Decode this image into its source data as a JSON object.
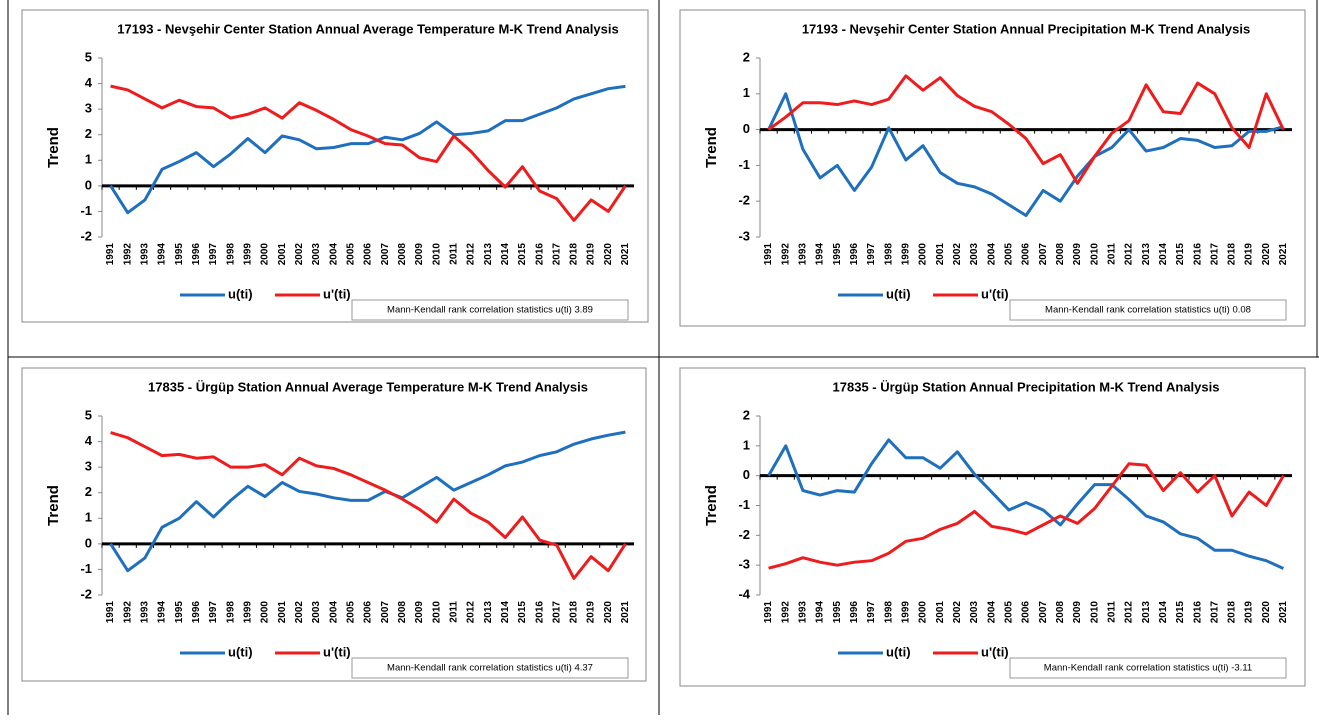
{
  "chart_data": [
    {
      "type": "line",
      "title": "17193 - Nevşehir Center Station  Annual  Average Temperature  M-K Trend Analysis",
      "y_label": "Trend",
      "categories": [
        "1991",
        "1992",
        "1993",
        "1994",
        "1995",
        "1996",
        "1997",
        "1998",
        "1999",
        "2000",
        "2001",
        "2002",
        "2003",
        "2004",
        "2005",
        "2006",
        "2007",
        "2008",
        "2009",
        "2010",
        "2011",
        "2012",
        "2013",
        "2014",
        "2015",
        "2016",
        "2017",
        "2018",
        "2019",
        "2020",
        "2021"
      ],
      "series": [
        {
          "name": "u(ti)",
          "color": "#1f6fbf",
          "values": [
            0,
            -1.05,
            -0.55,
            0.65,
            0.95,
            1.3,
            0.75,
            1.25,
            1.85,
            1.3,
            1.95,
            1.8,
            1.45,
            1.5,
            1.65,
            1.65,
            1.9,
            1.8,
            2.05,
            2.5,
            2.0,
            2.05,
            2.15,
            2.55,
            2.55,
            2.8,
            3.05,
            3.4,
            3.6,
            3.8,
            3.89
          ]
        },
        {
          "name": "u'(ti)",
          "color": "#ee1c1c",
          "values": [
            3.9,
            3.75,
            3.4,
            3.05,
            3.35,
            3.1,
            3.05,
            2.65,
            2.8,
            3.05,
            2.65,
            3.25,
            2.95,
            2.6,
            2.2,
            1.95,
            1.65,
            1.6,
            1.1,
            0.95,
            1.95,
            1.35,
            0.6,
            -0.05,
            0.75,
            -0.2,
            -0.5,
            -1.35,
            -0.55,
            -1.0,
            0
          ]
        }
      ],
      "ylim": [
        -2,
        5
      ],
      "yticks": [
        -2,
        -1,
        0,
        1,
        2,
        3,
        4,
        5
      ],
      "legend": "bottom",
      "annotation": "Mann-Kendall rank correlation statistics    u(ti)    3.89"
    },
    {
      "type": "line",
      "title": "17193 - Nevşehir Center Station  Annual  Precipitation  M-K Trend Analysis",
      "y_label": "Trend",
      "categories": [
        "1991",
        "1992",
        "1993",
        "1994",
        "1995",
        "1996",
        "1997",
        "1998",
        "1999",
        "2000",
        "2001",
        "2002",
        "2003",
        "2004",
        "2005",
        "2006",
        "2007",
        "2008",
        "2009",
        "2010",
        "2011",
        "2012",
        "2013",
        "2014",
        "2015",
        "2016",
        "2017",
        "2018",
        "2019",
        "2020",
        "2021"
      ],
      "series": [
        {
          "name": "u(ti)",
          "color": "#1f6fbf",
          "values": [
            0,
            1.0,
            -0.55,
            -1.35,
            -1.0,
            -1.7,
            -1.05,
            0.05,
            -0.85,
            -0.45,
            -1.2,
            -1.5,
            -1.6,
            -1.8,
            -2.1,
            -2.4,
            -1.7,
            -2.0,
            -1.3,
            -0.75,
            -0.5,
            0.0,
            -0.6,
            -0.5,
            -0.25,
            -0.3,
            -0.5,
            -0.45,
            -0.05,
            -0.05,
            0.08
          ]
        },
        {
          "name": "u'(ti)",
          "color": "#ee1c1c",
          "values": [
            0,
            0.35,
            0.75,
            0.75,
            0.7,
            0.8,
            0.7,
            0.85,
            1.5,
            1.1,
            1.45,
            0.95,
            0.65,
            0.5,
            0.15,
            -0.25,
            -0.95,
            -0.7,
            -1.5,
            -0.75,
            -0.1,
            0.25,
            1.25,
            0.5,
            0.45,
            1.3,
            1.0,
            0.05,
            -0.5,
            1.0,
            0
          ]
        }
      ],
      "ylim": [
        -3,
        2
      ],
      "yticks": [
        -3,
        -2,
        -1,
        0,
        1,
        2
      ],
      "legend": "bottom",
      "annotation": "Mann-Kendall rank correlation statistics    u(ti)    0.08"
    },
    {
      "type": "line",
      "title": "17835 - Ürgüp Station  Annual  Average Temperature  M-K Trend Analysis",
      "y_label": "Trend",
      "categories": [
        "1991",
        "1992",
        "1993",
        "1994",
        "1995",
        "1996",
        "1997",
        "1998",
        "1999",
        "2000",
        "2001",
        "2002",
        "2003",
        "2004",
        "2005",
        "2006",
        "2007",
        "2008",
        "2009",
        "2010",
        "2011",
        "2012",
        "2013",
        "2014",
        "2015",
        "2016",
        "2017",
        "2018",
        "2019",
        "2020",
        "2021"
      ],
      "series": [
        {
          "name": "u(ti)",
          "color": "#1f6fbf",
          "values": [
            0,
            -1.05,
            -0.55,
            0.65,
            1.0,
            1.65,
            1.05,
            1.7,
            2.25,
            1.85,
            2.4,
            2.05,
            1.95,
            1.8,
            1.7,
            1.7,
            2.05,
            1.8,
            2.2,
            2.6,
            2.1,
            2.4,
            2.7,
            3.05,
            3.2,
            3.45,
            3.6,
            3.9,
            4.1,
            4.25,
            4.37
          ]
        },
        {
          "name": "u'(ti)",
          "color": "#ee1c1c",
          "values": [
            4.35,
            4.15,
            3.8,
            3.45,
            3.5,
            3.35,
            3.4,
            3.0,
            3.0,
            3.1,
            2.7,
            3.35,
            3.05,
            2.95,
            2.7,
            2.4,
            2.1,
            1.75,
            1.35,
            0.85,
            1.75,
            1.2,
            0.85,
            0.25,
            1.05,
            0.15,
            -0.05,
            -1.35,
            -0.5,
            -1.05,
            0
          ]
        }
      ],
      "ylim": [
        -2,
        5
      ],
      "yticks": [
        -2,
        -1,
        0,
        1,
        2,
        3,
        4,
        5
      ],
      "legend": "bottom",
      "annotation": "Mann-Kendall rank correlation statistics    u(ti)    4.37"
    },
    {
      "type": "line",
      "title": "17835 - Ürgüp Station  Annual  Precipitation  M-K Trend Analysis",
      "y_label": "Trend",
      "categories": [
        "1991",
        "1992",
        "1993",
        "1994",
        "1995",
        "1996",
        "1997",
        "1998",
        "1999",
        "2000",
        "2001",
        "2002",
        "2003",
        "2004",
        "2005",
        "2006",
        "2007",
        "2008",
        "2009",
        "2010",
        "2011",
        "2012",
        "2013",
        "2014",
        "2015",
        "2016",
        "2017",
        "2018",
        "2019",
        "2020",
        "2021"
      ],
      "series": [
        {
          "name": "u(ti)",
          "color": "#1f6fbf",
          "values": [
            0,
            1.0,
            -0.5,
            -0.65,
            -0.5,
            -0.55,
            0.4,
            1.2,
            0.6,
            0.6,
            0.25,
            0.8,
            0.05,
            -0.55,
            -1.15,
            -0.9,
            -1.15,
            -1.65,
            -0.95,
            -0.3,
            -0.3,
            -0.8,
            -1.35,
            -1.55,
            -1.95,
            -2.1,
            -2.5,
            -2.5,
            -2.7,
            -2.85,
            -3.11
          ]
        },
        {
          "name": "u'(ti)",
          "color": "#ee1c1c",
          "values": [
            -3.1,
            -2.95,
            -2.75,
            -2.9,
            -3.0,
            -2.9,
            -2.85,
            -2.6,
            -2.2,
            -2.1,
            -1.8,
            -1.6,
            -1.2,
            -1.7,
            -1.8,
            -1.95,
            -1.65,
            -1.35,
            -1.6,
            -1.1,
            -0.35,
            0.4,
            0.35,
            -0.5,
            0.1,
            -0.55,
            0.0,
            -1.35,
            -0.55,
            -1.0,
            0
          ]
        }
      ],
      "ylim": [
        -4,
        2
      ],
      "yticks": [
        -4,
        -3,
        -2,
        -1,
        0,
        1,
        2
      ],
      "legend": "bottom",
      "annotation": "Mann-Kendall rank correlation statistics    u(ti)    -3.11"
    }
  ]
}
